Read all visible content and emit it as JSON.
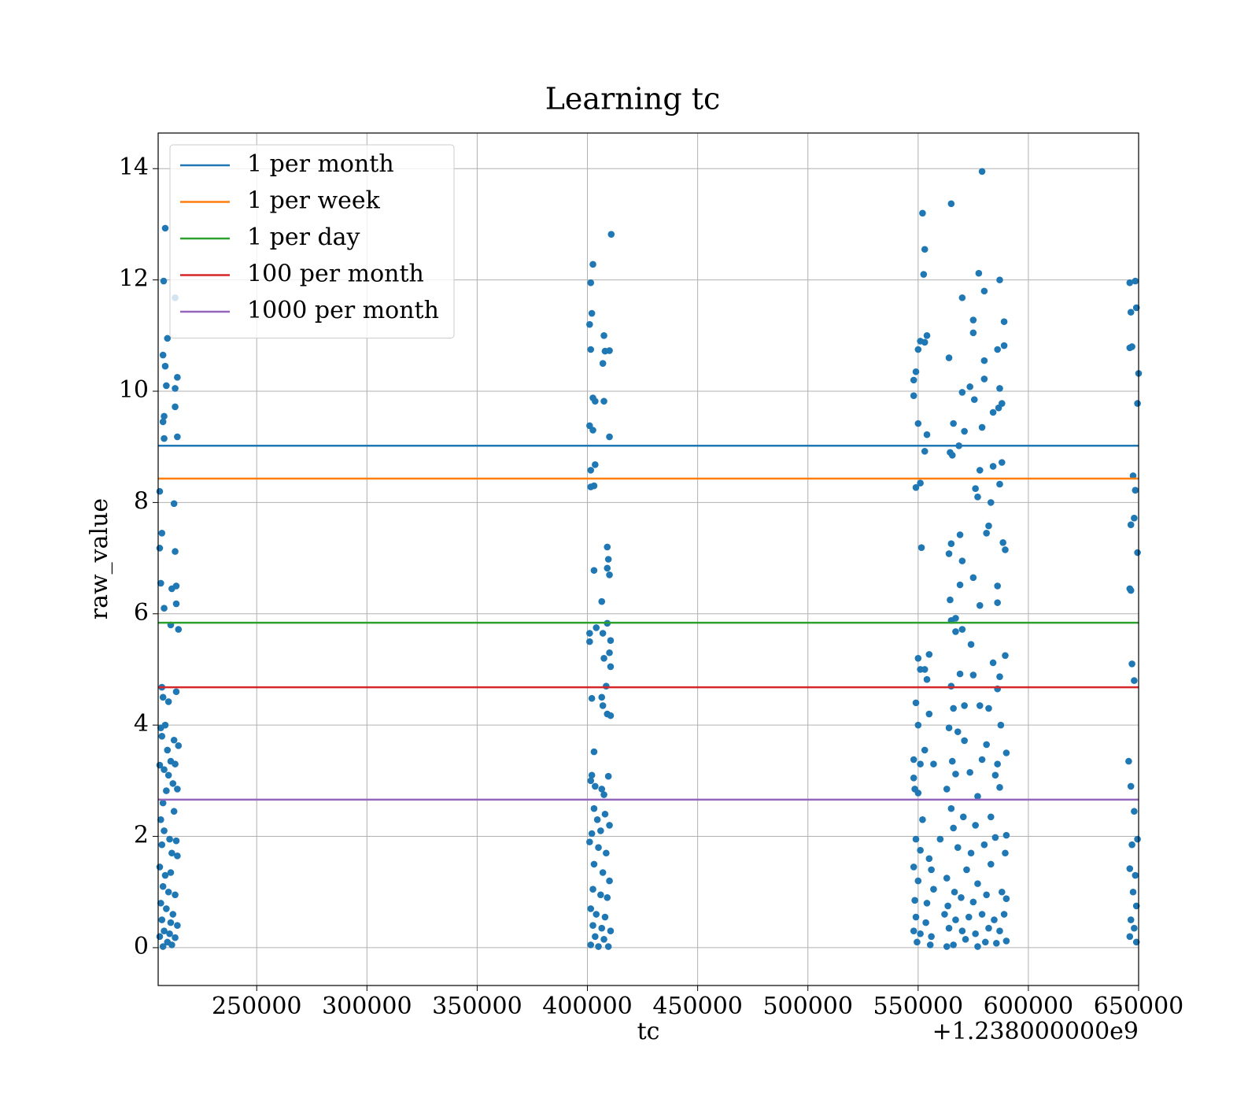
{
  "chart_data": {
    "type": "scatter",
    "title": "Learning tc",
    "xlabel": "tc",
    "ylabel": "raw_value",
    "x_offset_label": "+1.238000000e9",
    "color": "#1f77b4",
    "xlim": [
      205300,
      650000
    ],
    "xticks": [
      250000,
      300000,
      350000,
      400000,
      450000,
      500000,
      550000,
      600000,
      650000
    ],
    "ylim": [
      -0.68,
      14.64
    ],
    "yticks": [
      0,
      2,
      4,
      6,
      8,
      10,
      12,
      14
    ],
    "grid": true,
    "legend": "upper left",
    "hlines": [
      {
        "name": "1 per month",
        "color": "#1f77b4",
        "value": 9.02
      },
      {
        "name": "1 per week",
        "color": "#ff7f0e",
        "value": 8.43
      },
      {
        "name": "1 per day",
        "color": "#2ca02c",
        "value": 5.84
      },
      {
        "name": "100 per month",
        "color": "#d62728",
        "value": 4.68
      },
      {
        "name": "1000 per month",
        "color": "#9467bd",
        "value": 2.66
      }
    ],
    "x": [
      208500,
      207800,
      213000,
      209500,
      207500,
      208500,
      209000,
      214000,
      213000,
      213000,
      208000,
      207500,
      208000,
      214000,
      206000,
      212500,
      207000,
      206000,
      213000,
      206500,
      213500,
      211500,
      213500,
      208000,
      211000,
      214500,
      207000,
      213500,
      207500,
      210000,
      208500,
      206500,
      207000,
      212500,
      214500,
      209500,
      206000,
      211000,
      213000,
      208000,
      210000,
      212000,
      209000,
      214000,
      207500,
      212500,
      206500,
      208000,
      210500,
      213500,
      207000,
      211500,
      214000,
      206000,
      208500,
      211000,
      207500,
      210000,
      213000,
      206500,
      209000,
      212000,
      207000,
      211000,
      214000,
      208000,
      210500,
      206000,
      213000,
      209500,
      211500,
      207500,
      402500,
      401500,
      410800,
      402000,
      401000,
      407500,
      401500,
      408000,
      410000,
      407000,
      402500,
      403500,
      407500,
      401000,
      402500,
      410000,
      403500,
      401500,
      403000,
      401500,
      409000,
      409500,
      409000,
      403000,
      410000,
      406500,
      401000,
      404000,
      407000,
      409000,
      410500,
      401000,
      410000,
      407500,
      410500,
      408500,
      402000,
      406500,
      407000,
      409000,
      410500,
      403000,
      402000,
      401500,
      403500,
      406500,
      409500,
      407500,
      403000,
      404500,
      408000,
      402000,
      406000,
      410000,
      401000,
      405000,
      408500,
      403000,
      407000,
      410000,
      402500,
      406000,
      409000,
      401500,
      404000,
      408000,
      402500,
      406500,
      410500,
      403500,
      407500,
      401500,
      405000,
      409500,
      552000,
      565000,
      579000,
      553000,
      552500,
      577500,
      587000,
      570000,
      580000,
      575000,
      589000,
      554000,
      551000,
      553000,
      550000,
      575000,
      586000,
      589000,
      564000,
      580000,
      549000,
      548000,
      580000,
      548000,
      570000,
      573500,
      575500,
      588000,
      587000,
      550000,
      566000,
      579000,
      584000,
      586500,
      554000,
      571000,
      553000,
      564500,
      568500,
      565500,
      588000,
      578000,
      584000,
      551000,
      549000,
      576000,
      587000,
      577000,
      583000,
      582000,
      581000,
      569000,
      565000,
      564000,
      588500,
      589500,
      551500,
      570000,
      575000,
      586000,
      569000,
      564500,
      586000,
      578000,
      565000,
      567000,
      570000,
      567000,
      574000,
      589500,
      555000,
      550000,
      584000,
      551000,
      553000,
      554000,
      587000,
      569000,
      575000,
      565000,
      586000,
      549000,
      571000,
      578000,
      566000,
      550000,
      555000,
      564000,
      568000,
      582000,
      587500,
      553000,
      571000,
      581000,
      590000,
      548000,
      551000,
      557000,
      565500,
      579000,
      586000,
      548000,
      567000,
      573500,
      585000,
      548500,
      550000,
      563000,
      577000,
      587000,
      552000,
      565000,
      570500,
      583000,
      590000,
      549000,
      560000,
      566000,
      576000,
      585000,
      551000,
      555000,
      568000,
      574000,
      580000,
      589500,
      548000,
      556000,
      563000,
      572000,
      583000,
      550000,
      557000,
      566500,
      577000,
      588000,
      548500,
      554000,
      563500,
      569500,
      575000,
      581000,
      590000,
      549000,
      553500,
      562000,
      567000,
      573000,
      579000,
      584500,
      589000,
      548000,
      551000,
      556000,
      564000,
      570000,
      576000,
      582000,
      587000,
      549500,
      555500,
      563000,
      566000,
      571500,
      577000,
      580500,
      585500,
      590000,
      646000,
      648500,
      649000,
      646500,
      646000,
      647000,
      650000,
      649500,
      647500,
      648500,
      648000,
      646500,
      649500,
      646000,
      646500,
      647000,
      648000,
      645500,
      646500,
      648000,
      649500,
      647000,
      646000,
      648500,
      647500,
      649000,
      646500,
      648000,
      646000,
      649000
    ],
    "values": [
      12.93,
      11.98,
      11.68,
      10.95,
      10.65,
      10.45,
      10.1,
      10.25,
      10.05,
      9.72,
      9.55,
      9.45,
      9.15,
      9.18,
      8.2,
      7.98,
      7.45,
      7.18,
      7.12,
      6.55,
      6.5,
      6.45,
      6.18,
      6.1,
      5.8,
      5.72,
      4.68,
      4.6,
      4.5,
      4.42,
      4.0,
      3.95,
      3.8,
      3.73,
      3.63,
      3.55,
      3.28,
      3.35,
      3.3,
      3.2,
      3.1,
      2.95,
      2.82,
      2.85,
      2.6,
      2.45,
      2.3,
      2.1,
      1.95,
      1.92,
      1.85,
      1.7,
      1.65,
      1.45,
      1.3,
      1.35,
      1.1,
      1.0,
      0.95,
      0.8,
      0.7,
      0.6,
      0.5,
      0.45,
      0.4,
      0.3,
      0.25,
      0.2,
      0.18,
      0.1,
      0.05,
      0.02,
      12.28,
      11.95,
      12.82,
      11.4,
      11.2,
      11.0,
      10.75,
      10.72,
      10.73,
      10.5,
      9.88,
      9.82,
      9.82,
      9.38,
      9.3,
      9.18,
      8.68,
      8.58,
      8.3,
      8.28,
      7.2,
      6.98,
      6.82,
      6.78,
      6.7,
      6.22,
      5.65,
      5.75,
      5.65,
      5.83,
      5.52,
      5.5,
      5.3,
      5.2,
      5.05,
      4.7,
      4.48,
      4.5,
      4.35,
      4.2,
      4.17,
      3.52,
      3.1,
      3.0,
      2.9,
      2.85,
      3.08,
      2.75,
      2.5,
      2.3,
      2.4,
      2.05,
      2.1,
      2.2,
      1.9,
      1.8,
      1.7,
      1.5,
      1.35,
      1.2,
      1.05,
      0.95,
      0.9,
      0.7,
      0.6,
      0.55,
      0.4,
      0.35,
      0.3,
      0.2,
      0.15,
      0.05,
      0.02,
      0.02,
      13.2,
      13.37,
      13.95,
      12.55,
      12.1,
      12.12,
      12.0,
      11.68,
      11.8,
      11.28,
      11.25,
      11.0,
      10.9,
      10.88,
      10.75,
      11.05,
      10.75,
      10.82,
      10.6,
      10.55,
      10.35,
      10.2,
      10.22,
      9.92,
      9.98,
      10.08,
      9.85,
      9.78,
      10.05,
      9.42,
      9.42,
      9.35,
      9.62,
      9.7,
      9.22,
      9.28,
      8.92,
      8.9,
      9.02,
      8.85,
      8.72,
      8.58,
      8.65,
      8.35,
      8.27,
      8.25,
      8.33,
      8.1,
      8.0,
      7.58,
      7.45,
      7.42,
      7.26,
      7.08,
      7.28,
      7.15,
      7.19,
      6.95,
      6.65,
      6.5,
      6.52,
      6.25,
      6.2,
      6.15,
      5.88,
      5.92,
      5.72,
      5.68,
      5.45,
      5.25,
      5.27,
      5.2,
      5.12,
      5.0,
      5.0,
      4.82,
      4.87,
      4.92,
      4.9,
      4.7,
      4.65,
      4.4,
      4.35,
      4.35,
      4.3,
      4.0,
      4.2,
      3.95,
      3.88,
      4.3,
      4.0,
      3.55,
      3.72,
      3.65,
      3.5,
      3.38,
      3.3,
      3.3,
      3.35,
      3.38,
      3.3,
      3.05,
      3.12,
      3.15,
      3.1,
      2.85,
      2.78,
      2.85,
      2.72,
      2.88,
      2.3,
      2.5,
      2.35,
      2.35,
      2.02,
      1.95,
      1.95,
      2.15,
      2.2,
      1.98,
      1.75,
      1.6,
      1.8,
      1.7,
      1.85,
      1.7,
      1.45,
      1.4,
      1.25,
      1.4,
      1.5,
      1.2,
      1.05,
      1.0,
      1.15,
      1.0,
      0.85,
      0.8,
      0.75,
      0.9,
      0.82,
      0.95,
      0.88,
      0.55,
      0.45,
      0.6,
      0.5,
      0.55,
      0.6,
      0.5,
      0.6,
      0.3,
      0.25,
      0.2,
      0.35,
      0.3,
      0.25,
      0.35,
      0.3,
      0.1,
      0.05,
      0.02,
      0.05,
      0.15,
      0.02,
      0.1,
      0.08,
      0.12,
      11.95,
      11.98,
      11.5,
      11.42,
      10.78,
      10.8,
      10.32,
      9.78,
      8.48,
      8.22,
      7.72,
      7.6,
      7.1,
      6.45,
      6.42,
      5.1,
      4.8,
      3.35,
      2.9,
      2.45,
      1.95,
      1.85,
      1.42,
      1.3,
      1.0,
      0.75,
      0.5,
      0.35,
      0.2,
      0.1
    ]
  }
}
